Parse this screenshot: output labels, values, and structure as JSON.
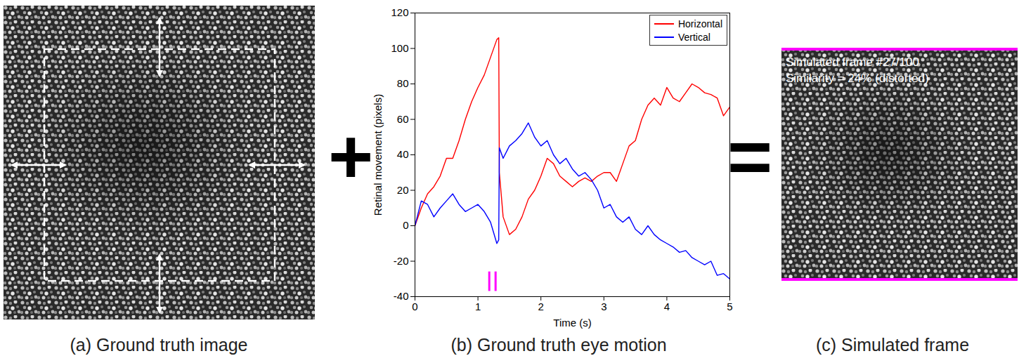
{
  "figure": {
    "panels": [
      {
        "caption": "(a) Ground truth image"
      },
      {
        "caption": "(b) Ground truth eye motion"
      },
      {
        "caption": "(c) Simulated frame",
        "overlay": [
          "Simulated frame #27/100",
          "Similarity = 24% (distorted)"
        ]
      }
    ],
    "operators": [
      "+",
      "="
    ]
  },
  "chart_data": {
    "type": "line",
    "xlabel": "Time (s)",
    "ylabel": "Retinal movement (pixels)",
    "x": [
      0,
      0.1,
      0.2,
      0.3,
      0.4,
      0.5,
      0.6,
      0.7,
      0.8,
      0.9,
      1.0,
      1.1,
      1.2,
      1.3,
      1.33,
      1.34,
      1.4,
      1.5,
      1.6,
      1.7,
      1.8,
      1.9,
      2.0,
      2.1,
      2.2,
      2.3,
      2.4,
      2.5,
      2.6,
      2.7,
      2.8,
      2.9,
      3.0,
      3.1,
      3.2,
      3.3,
      3.4,
      3.5,
      3.6,
      3.7,
      3.8,
      3.9,
      4.0,
      4.1,
      4.2,
      4.3,
      4.4,
      4.5,
      4.6,
      4.7,
      4.8,
      4.9,
      5.0
    ],
    "series": [
      {
        "name": "Horizontal",
        "color": "#ff0000",
        "values": [
          0,
          10,
          18,
          22,
          28,
          38,
          38,
          48,
          60,
          70,
          78,
          85,
          95,
          105,
          106,
          30,
          5,
          -5,
          -2,
          5,
          15,
          20,
          28,
          38,
          35,
          28,
          25,
          22,
          25,
          27,
          25,
          28,
          30,
          30,
          25,
          35,
          45,
          48,
          60,
          68,
          72,
          68,
          78,
          72,
          70,
          75,
          80,
          78,
          75,
          74,
          72,
          62,
          67
        ]
      },
      {
        "name": "Vertical",
        "color": "#0000ff",
        "values": [
          0,
          14,
          12,
          5,
          10,
          14,
          18,
          12,
          8,
          10,
          12,
          8,
          2,
          -10,
          -8,
          44,
          38,
          45,
          48,
          52,
          58,
          50,
          45,
          48,
          40,
          35,
          38,
          32,
          28,
          30,
          26,
          20,
          10,
          12,
          5,
          2,
          5,
          -2,
          -5,
          0,
          -5,
          -8,
          -10,
          -12,
          -15,
          -14,
          -18,
          -20,
          -22,
          -20,
          -28,
          -27,
          -30
        ]
      }
    ],
    "xlim": [
      0,
      5
    ],
    "ylim": [
      -40,
      120
    ],
    "xticks": [
      0,
      1,
      2,
      3,
      4,
      5
    ],
    "yticks": [
      -40,
      -20,
      0,
      20,
      40,
      60,
      80,
      100,
      120
    ],
    "grid": false,
    "legend": "top-right",
    "frame_marks": {
      "x": [
        1.18,
        1.28
      ],
      "y_from": -37,
      "y_to": -26,
      "color": "#ff00ff"
    }
  }
}
